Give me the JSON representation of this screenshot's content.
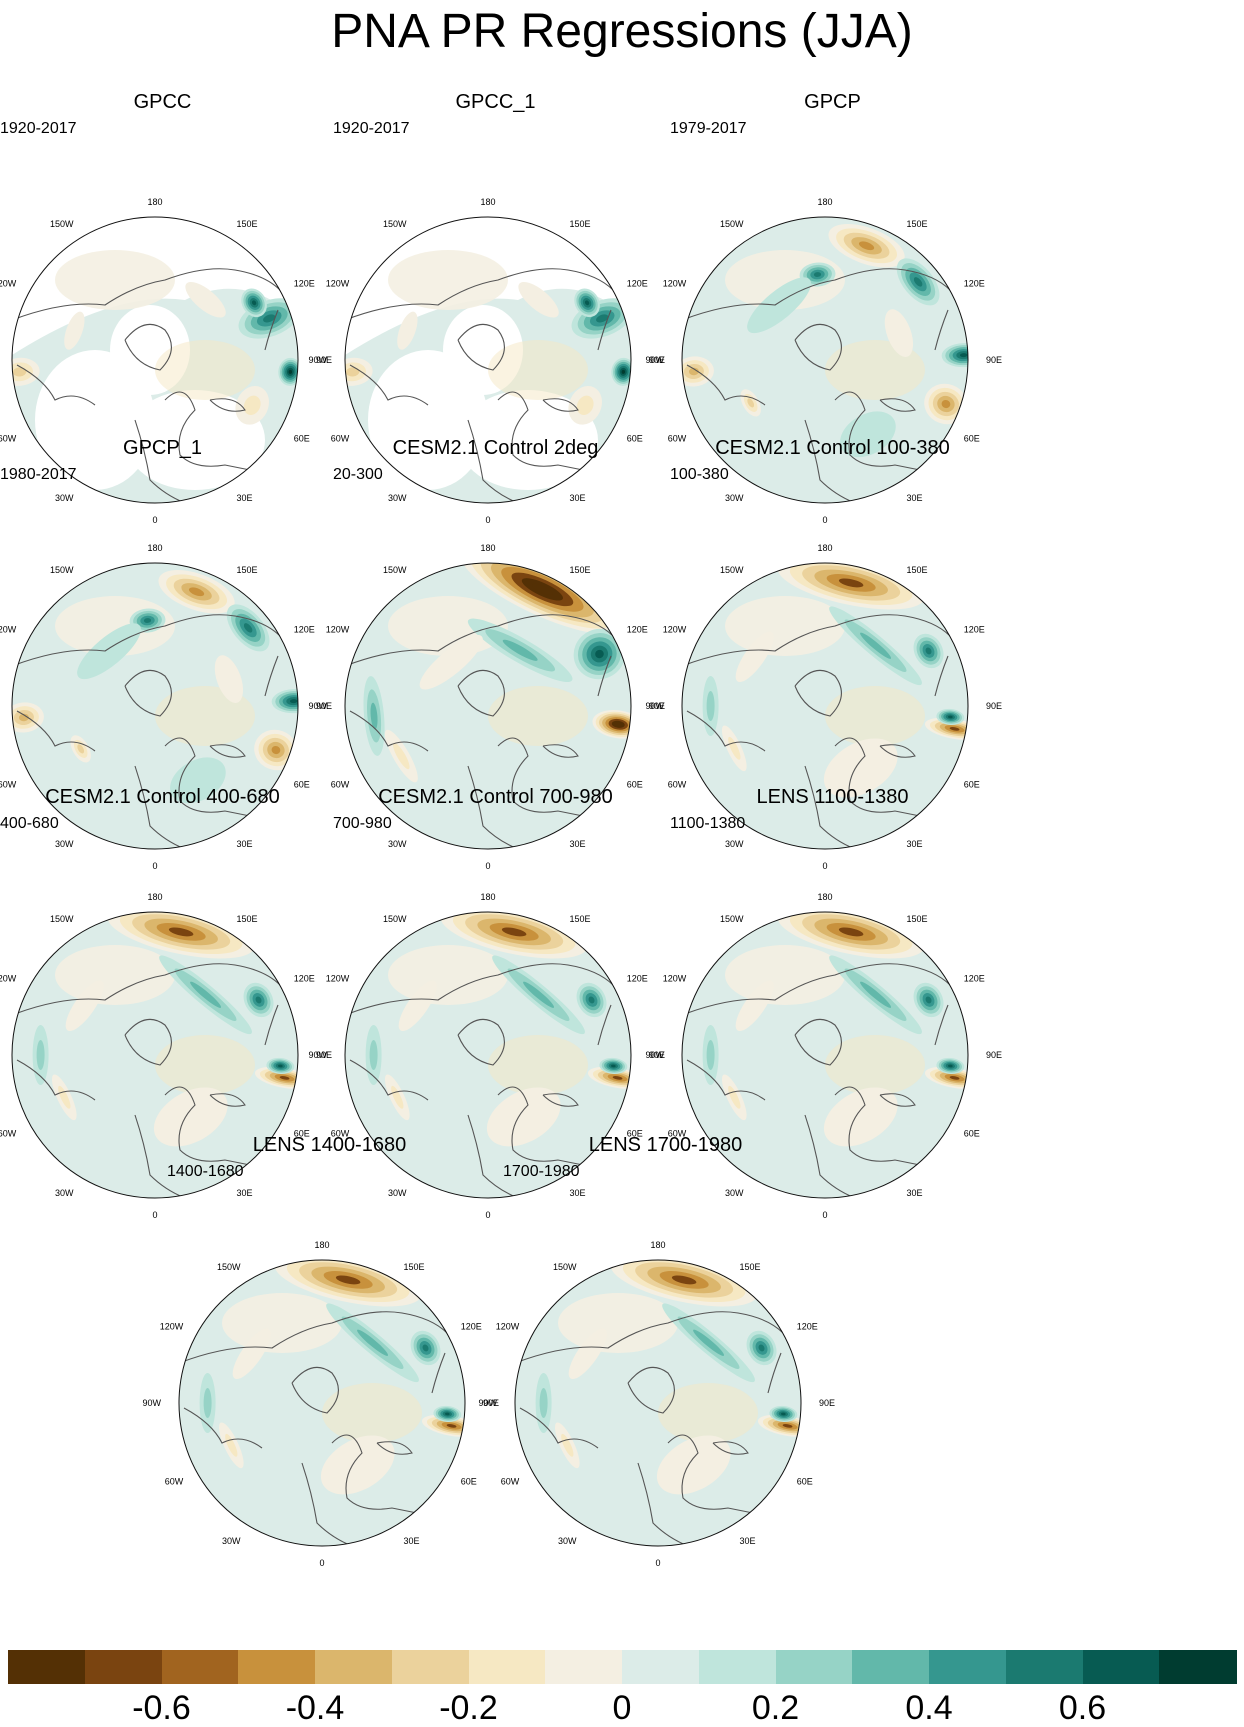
{
  "figure_title": "PNA PR Regressions (JJA)",
  "longitude_labels": [
    "180",
    "150E",
    "120E",
    "90E",
    "60E",
    "30E",
    "0",
    "30W",
    "60W",
    "90W",
    "120W",
    "150W"
  ],
  "panels": [
    {
      "title": "GPCC",
      "period": "1920-2017",
      "style": "gpcc"
    },
    {
      "title": "GPCC_1",
      "period": "1920-2017",
      "style": "gpcc"
    },
    {
      "title": "GPCP",
      "period": "1979-2017",
      "style": "gpcp"
    },
    {
      "title": "GPCP_1",
      "period": "1980-2017",
      "style": "gpcp"
    },
    {
      "title": "CESM2.1 Control 2deg",
      "period": "20-300",
      "style": "model_strong"
    },
    {
      "title": "CESM2.1 Control 100-380",
      "period": "100-380",
      "style": "model"
    },
    {
      "title": "CESM2.1 Control 400-680",
      "period": "400-680",
      "style": "model"
    },
    {
      "title": "CESM2.1 Control 700-980",
      "period": "700-980",
      "style": "model"
    },
    {
      "title": "LENS 1100-1380",
      "period": "1100-1380",
      "style": "model"
    },
    {
      "title": "LENS 1400-1680",
      "period": "1400-1680",
      "style": "model"
    },
    {
      "title": "LENS 1700-1980",
      "period": "1700-1980",
      "style": "model"
    }
  ],
  "colorbar": {
    "colors": [
      "#543005",
      "#7a4410",
      "#a1641f",
      "#c8913c",
      "#dbb66c",
      "#ebd29c",
      "#f6e8c3",
      "#f4efe2",
      "#dcece8",
      "#bfe5dc",
      "#96d3c6",
      "#62b8aa",
      "#35978f",
      "#1b7a70",
      "#075b52",
      "#003c30"
    ],
    "tick_labels": [
      "-0.6",
      "-0.4",
      "-0.2",
      "0",
      "0.2",
      "0.4",
      "0.6"
    ]
  },
  "chart_data": {
    "type": "heatmap",
    "title": "PNA PR Regressions (JJA)",
    "variable": "PR",
    "colorbar_range": [
      -0.8,
      0.8
    ],
    "colorbar_levels": [
      -0.8,
      -0.7,
      -0.6,
      -0.5,
      -0.4,
      -0.3,
      -0.2,
      -0.1,
      0,
      0.1,
      0.2,
      0.3,
      0.4,
      0.5,
      0.6,
      0.7,
      0.8
    ],
    "tick_values": [
      -0.6,
      -0.4,
      -0.2,
      0,
      0.2,
      0.4,
      0.6
    ],
    "projection": "north polar stereographic",
    "panel_count": 11
  }
}
